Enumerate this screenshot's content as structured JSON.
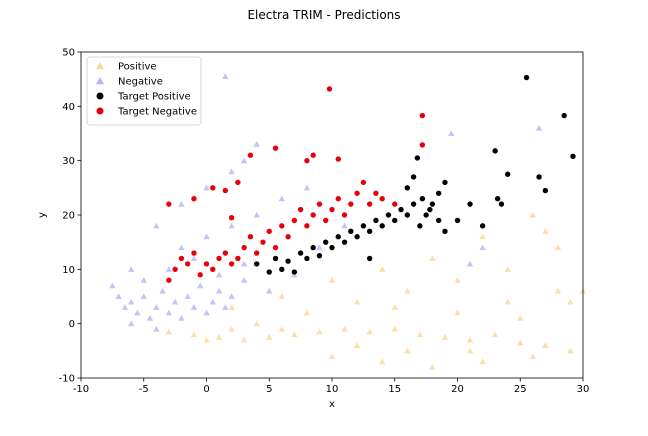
{
  "chart_data": {
    "type": "scatter",
    "title": "Electra TRIM - Predictions",
    "xlabel": "x",
    "ylabel": "y",
    "xlim": [
      -10,
      30
    ],
    "ylim": [
      -10,
      50
    ],
    "xticks": [
      "-10",
      "-5",
      "0",
      "5",
      "10",
      "15",
      "20",
      "25",
      "30"
    ],
    "yticks": [
      "-10",
      "0",
      "10",
      "20",
      "30",
      "40",
      "50"
    ],
    "grid": false,
    "legend_position": "upper-left",
    "series": [
      {
        "name": "Positive",
        "marker": "triangle",
        "color": "#f6b73c",
        "points": [
          [
            -3,
            -1.5
          ],
          [
            -1,
            -2
          ],
          [
            1,
            -2.5
          ],
          [
            3,
            -3
          ],
          [
            5,
            -2.5
          ],
          [
            7,
            -2
          ],
          [
            9,
            -1.5
          ],
          [
            11,
            -1
          ],
          [
            13,
            -1.5
          ],
          [
            15,
            -1
          ],
          [
            17,
            -2
          ],
          [
            19,
            -2.5
          ],
          [
            21,
            -3
          ],
          [
            23,
            -2
          ],
          [
            25,
            -3.5
          ],
          [
            27,
            -4
          ],
          [
            29,
            -5
          ],
          [
            4,
            0
          ],
          [
            8,
            2
          ],
          [
            12,
            4
          ],
          [
            16,
            6
          ],
          [
            20,
            8
          ],
          [
            24,
            10
          ],
          [
            28,
            14
          ],
          [
            10,
            -6
          ],
          [
            14,
            -7
          ],
          [
            18,
            -8
          ],
          [
            22,
            -7
          ],
          [
            26,
            -6
          ],
          [
            20,
            2
          ],
          [
            24,
            4
          ],
          [
            28,
            6
          ],
          [
            2,
            3
          ],
          [
            6,
            5
          ],
          [
            10,
            8
          ],
          [
            14,
            10
          ],
          [
            18,
            12
          ],
          [
            22,
            16
          ],
          [
            26,
            20
          ],
          [
            29,
            4
          ],
          [
            12,
            -4
          ],
          [
            16,
            -5
          ],
          [
            6,
            -1
          ],
          [
            2,
            -1
          ],
          [
            0,
            -3
          ],
          [
            30,
            6
          ],
          [
            27,
            17
          ],
          [
            25,
            1
          ],
          [
            21,
            -5
          ],
          [
            15,
            3
          ]
        ]
      },
      {
        "name": "Negative",
        "marker": "triangle",
        "color": "#7b7cf2",
        "points": [
          [
            -7,
            5
          ],
          [
            -6.5,
            3
          ],
          [
            -6,
            4
          ],
          [
            -5.5,
            2
          ],
          [
            -5,
            5
          ],
          [
            -4.5,
            1
          ],
          [
            -4,
            3
          ],
          [
            -3.5,
            6
          ],
          [
            -3,
            2
          ],
          [
            -2.5,
            4
          ],
          [
            -2,
            1
          ],
          [
            -1.5,
            5
          ],
          [
            -1,
            3
          ],
          [
            -0.5,
            7
          ],
          [
            0,
            2
          ],
          [
            0.5,
            4
          ],
          [
            1,
            6
          ],
          [
            1.5,
            3
          ],
          [
            2,
            5
          ],
          [
            -5,
            8
          ],
          [
            -3,
            10
          ],
          [
            -1,
            12
          ],
          [
            1,
            9
          ],
          [
            3,
            11
          ],
          [
            -2,
            14
          ],
          [
            0,
            16
          ],
          [
            2,
            18
          ],
          [
            4,
            20
          ],
          [
            6,
            23
          ],
          [
            8,
            25
          ],
          [
            3,
            30
          ],
          [
            1.5,
            45.5
          ],
          [
            -4,
            -1
          ],
          [
            -6,
            0
          ],
          [
            -7.5,
            7
          ],
          [
            -6,
            10
          ],
          [
            5,
            6
          ],
          [
            7,
            9
          ],
          [
            9,
            14
          ],
          [
            11,
            18
          ],
          [
            -4,
            18
          ],
          [
            -2,
            22
          ],
          [
            0,
            25
          ],
          [
            2,
            28
          ],
          [
            4,
            33
          ],
          [
            19.5,
            35
          ],
          [
            26.5,
            36
          ],
          [
            22,
            14
          ],
          [
            21,
            11
          ],
          [
            3,
            8
          ]
        ]
      },
      {
        "name": "Target Positive",
        "marker": "circle",
        "color": "#000000",
        "points": [
          [
            4,
            11
          ],
          [
            5,
            9.5
          ],
          [
            5.5,
            12
          ],
          [
            6,
            10
          ],
          [
            6.5,
            11.5
          ],
          [
            7,
            9.5
          ],
          [
            7.5,
            13
          ],
          [
            8,
            12
          ],
          [
            8.5,
            14
          ],
          [
            9,
            12.5
          ],
          [
            9.5,
            15
          ],
          [
            10,
            14
          ],
          [
            10.5,
            16
          ],
          [
            11,
            15
          ],
          [
            11.5,
            17
          ],
          [
            12,
            16
          ],
          [
            12.5,
            18
          ],
          [
            13,
            17
          ],
          [
            13.5,
            19
          ],
          [
            14,
            18
          ],
          [
            14.5,
            20
          ],
          [
            15,
            19
          ],
          [
            15.5,
            21
          ],
          [
            16,
            20
          ],
          [
            16.5,
            22
          ],
          [
            17,
            18
          ],
          [
            17.5,
            20
          ],
          [
            18,
            22
          ],
          [
            18.5,
            19
          ],
          [
            19,
            17
          ],
          [
            16,
            25
          ],
          [
            16.5,
            27
          ],
          [
            16.8,
            30.5
          ],
          [
            17.2,
            23
          ],
          [
            17.8,
            21
          ],
          [
            18.5,
            24
          ],
          [
            19,
            26
          ],
          [
            20,
            19
          ],
          [
            21,
            22
          ],
          [
            22,
            18
          ],
          [
            23,
            31.8
          ],
          [
            23.2,
            23
          ],
          [
            23.5,
            22
          ],
          [
            24,
            27.5
          ],
          [
            25.5,
            45.3
          ],
          [
            26.5,
            27
          ],
          [
            27,
            24.5
          ],
          [
            28.5,
            38.3
          ],
          [
            29.2,
            30.8
          ],
          [
            13,
            12
          ]
        ]
      },
      {
        "name": "Target Negative",
        "marker": "circle",
        "color": "#e8000b",
        "points": [
          [
            -3,
            8
          ],
          [
            -2.5,
            10
          ],
          [
            -2,
            12
          ],
          [
            -1.5,
            11
          ],
          [
            -1,
            13
          ],
          [
            -0.5,
            9
          ],
          [
            0,
            11
          ],
          [
            0.5,
            10
          ],
          [
            1,
            12
          ],
          [
            1.5,
            13
          ],
          [
            2,
            11
          ],
          [
            2.5,
            12
          ],
          [
            3,
            14
          ],
          [
            3.5,
            16
          ],
          [
            4,
            13
          ],
          [
            4.5,
            15
          ],
          [
            5,
            17
          ],
          [
            5.5,
            14
          ],
          [
            6,
            18
          ],
          [
            6.5,
            16
          ],
          [
            7,
            19
          ],
          [
            7.5,
            21
          ],
          [
            8,
            18
          ],
          [
            8.5,
            20
          ],
          [
            9,
            22
          ],
          [
            9.5,
            19
          ],
          [
            10,
            21
          ],
          [
            10.5,
            23
          ],
          [
            11,
            20
          ],
          [
            11.5,
            22
          ],
          [
            12,
            24
          ],
          [
            12.5,
            26
          ],
          [
            13,
            22
          ],
          [
            13.5,
            24
          ],
          [
            14,
            23
          ],
          [
            15,
            22
          ],
          [
            -3,
            22
          ],
          [
            -1,
            23
          ],
          [
            0.5,
            25
          ],
          [
            1.5,
            24.5
          ],
          [
            2.5,
            26
          ],
          [
            3.5,
            31
          ],
          [
            5.5,
            32.3
          ],
          [
            8,
            30
          ],
          [
            8.5,
            31
          ],
          [
            9.8,
            43.2
          ],
          [
            10.5,
            30.3
          ],
          [
            17.2,
            38.3
          ],
          [
            17.2,
            32.9
          ],
          [
            2,
            19.5
          ]
        ]
      }
    ]
  }
}
